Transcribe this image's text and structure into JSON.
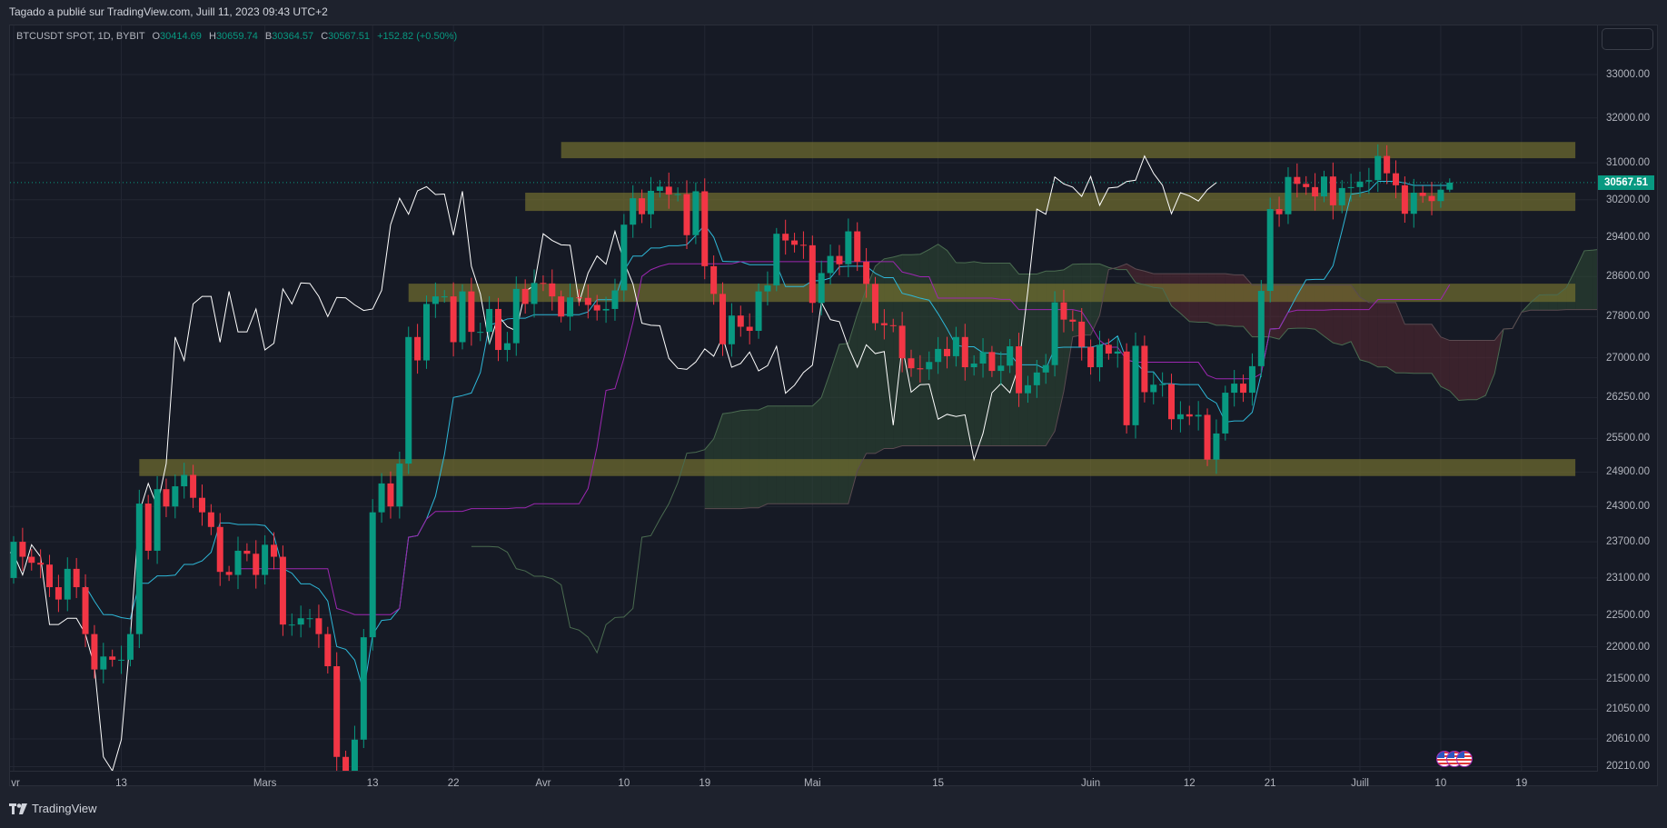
{
  "title_bar": {
    "text": "Tagado a publié sur TradingView.com, Juill 11, 2023 09:43 UTC+2"
  },
  "legend": {
    "symbol": "BTCUSDT SPOT, 1D, BYBIT",
    "o_label": "O",
    "o": "30414.69",
    "h_label": "H",
    "h": "30659.74",
    "l_label": "B",
    "l": "30364.57",
    "c_label": "C",
    "c": "30567.51",
    "change": "+152.82 (+0.50%)"
  },
  "footer": {
    "brand": "TradingView"
  },
  "colors": {
    "up": "#089981",
    "down": "#f23645",
    "tenkan": "#2eb8d8",
    "kijun": "#9c27b0",
    "lagging": "#ffffff",
    "cloud_up": "#2f4a35",
    "cloud_down": "#5a2a33",
    "zone": "#7a7530",
    "bg": "#161a25",
    "grid": "#232733"
  },
  "chart_data": {
    "type": "candlestick",
    "title": "BTCUSDT SPOT, 1D, BYBIT",
    "scale": "log",
    "start_date": "2023-02-01",
    "first_open": 23100,
    "last_candle": {
      "open": 30414.69,
      "high": 30659.74,
      "low": 30364.57,
      "close": 30567.51
    },
    "closes": [
      23700,
      23450,
      23350,
      23320,
      22950,
      22750,
      23250,
      22950,
      22200,
      21650,
      21850,
      21800,
      21800,
      22200,
      24350,
      23550,
      24600,
      24300,
      24650,
      24850,
      24450,
      24200,
      23950,
      23200,
      23150,
      23550,
      23500,
      23150,
      23650,
      23450,
      22350,
      22350,
      22450,
      22450,
      22200,
      21700,
      20350,
      20150,
      20600,
      22150,
      24200,
      24700,
      24300,
      25050,
      27400,
      26950,
      28050,
      28200,
      28200,
      27300,
      28300,
      27500,
      27500,
      27950,
      27150,
      27280,
      28350,
      28050,
      28470,
      28460,
      28200,
      27800,
      28180,
      28170,
      28030,
      27920,
      27950,
      28320,
      29670,
      30230,
      29890,
      30390,
      30480,
      30310,
      30320,
      29450,
      30380,
      28810,
      28250,
      27260,
      27820,
      27600,
      27520,
      28300,
      28420,
      29480,
      29340,
      29250,
      29240,
      28070,
      28670,
      29020,
      28850,
      29530,
      28900,
      28450,
      27670,
      27630,
      27620,
      26990,
      26800,
      26780,
      26920,
      27170,
      27030,
      27400,
      26820,
      26890,
      27110,
      26750,
      26850,
      27220,
      26330,
      26480,
      26720,
      26860,
      28080,
      27740,
      27700,
      27210,
      26820,
      27250,
      27080,
      27120,
      25740,
      27230,
      26350,
      26490,
      26500,
      25850,
      25940,
      25900,
      25930,
      25120,
      25590,
      26340,
      26510,
      26340,
      26840,
      28310,
      30000,
      29890,
      30690,
      30540,
      30470,
      30270,
      30700,
      30080,
      30450,
      30470,
      30590,
      30620,
      31150,
      30770,
      30510,
      29900,
      30350,
      30280,
      30170,
      30414.69,
      30567.51
    ],
    "indicators": [
      "Ichimoku Tenkan (9)",
      "Kijun (26)",
      "Lagging span (26)",
      "Cloud (52, shift 26)"
    ],
    "ylim": [
      20210,
      33000
    ],
    "price_ticks": [
      "33000.00",
      "32000.00",
      "31000.00",
      "30200.00",
      "29400.00",
      "28600.00",
      "27800.00",
      "27000.00",
      "26250.00",
      "25500.00",
      "24900.00",
      "24300.00",
      "23700.00",
      "23100.00",
      "22500.00",
      "22000.00",
      "21500.00",
      "21050.00",
      "20610.00",
      "20210.00"
    ],
    "time_ticks": [
      {
        "label": "vr",
        "day": 0
      },
      {
        "label": "13",
        "day": 12
      },
      {
        "label": "Mars",
        "day": 28
      },
      {
        "label": "13",
        "day": 40
      },
      {
        "label": "22",
        "day": 49
      },
      {
        "label": "Avr",
        "day": 59
      },
      {
        "label": "10",
        "day": 68
      },
      {
        "label": "19",
        "day": 77
      },
      {
        "label": "Mai",
        "day": 89
      },
      {
        "label": "15",
        "day": 103
      },
      {
        "label": "Juin",
        "day": 120
      },
      {
        "label": "12",
        "day": 131
      },
      {
        "label": "21",
        "day": 140
      },
      {
        "label": "Juill",
        "day": 150
      },
      {
        "label": "10",
        "day": 159
      },
      {
        "label": "19",
        "day": 168
      }
    ],
    "zones": [
      {
        "from_day": 61,
        "to_day": 174,
        "low": 31100,
        "high": 31460
      },
      {
        "from_day": 57,
        "to_day": 174,
        "low": 29960,
        "high": 30350
      },
      {
        "from_day": 44,
        "to_day": 174,
        "low": 28090,
        "high": 28455
      },
      {
        "from_day": 14,
        "to_day": 174,
        "low": 24830,
        "high": 25130
      }
    ],
    "last_price": "30567.51"
  }
}
